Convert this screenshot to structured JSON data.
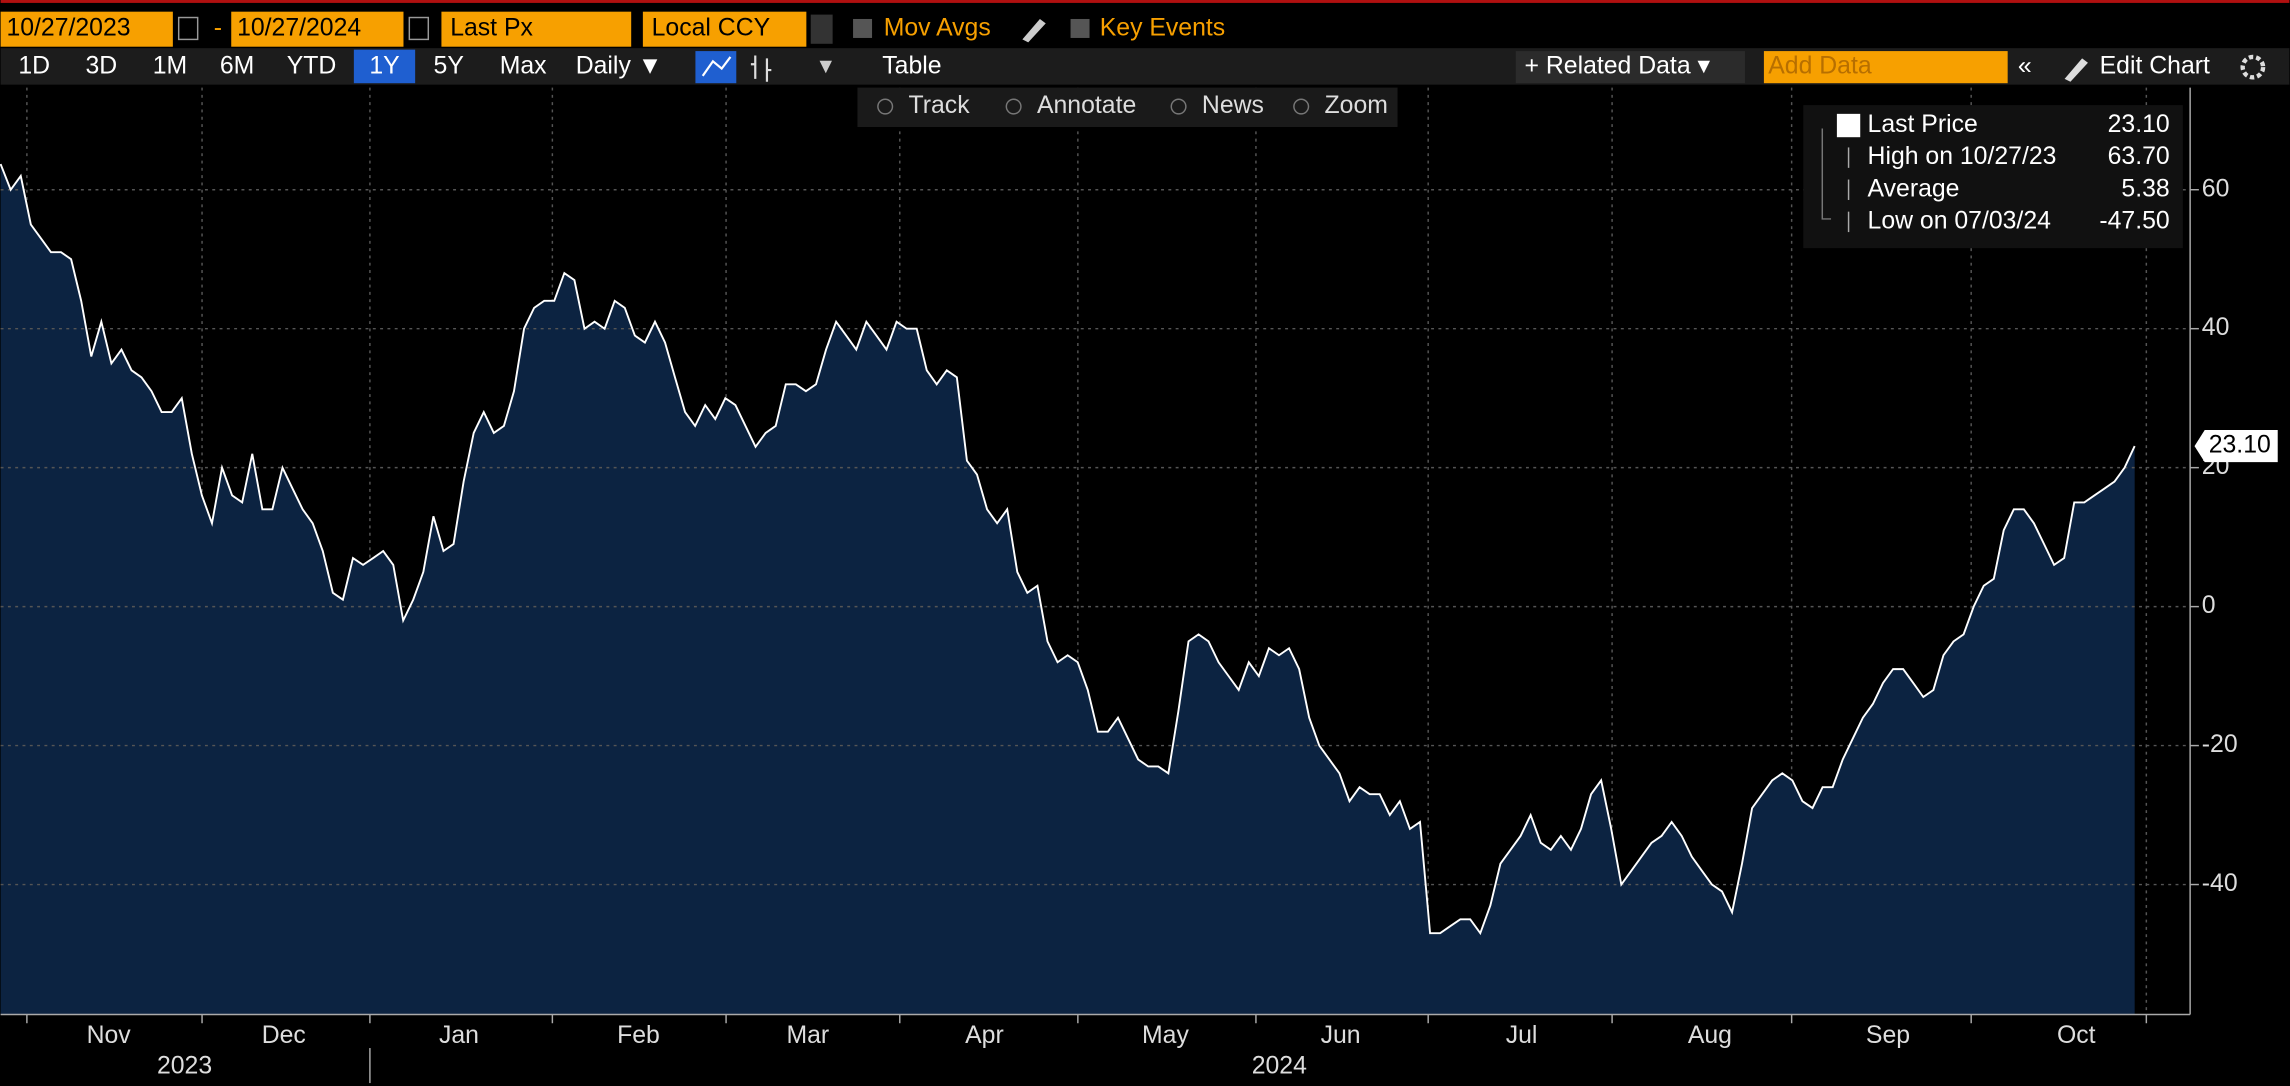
{
  "toolbar": {
    "start_date": "10/27/2023",
    "end_date": "10/27/2024",
    "field": "Last Px",
    "currency": "Local CCY",
    "mov_avgs": "Mov Avgs",
    "key_events": "Key Events",
    "ranges": [
      "1D",
      "3D",
      "1M",
      "6M",
      "YTD",
      "1Y",
      "5Y",
      "Max"
    ],
    "frequency": "Daily ▼",
    "table": "Table",
    "related_data": "+ Related Data ▾",
    "add_data": "Add Data",
    "edit_chart": "Edit Chart"
  },
  "tools": [
    "Track",
    "Annotate",
    "News",
    "Zoom"
  ],
  "chart_data": {
    "type": "line",
    "x_labels": [
      "Nov",
      "Dec",
      "Jan",
      "Feb",
      "Mar",
      "Apr",
      "May",
      "Jun",
      "Jul",
      "Aug",
      "Sep",
      "Oct"
    ],
    "years": [
      "2023",
      "2024"
    ],
    "series": [
      {
        "name": "Last Price",
        "color": "#ffffff",
        "values": [
          63.7,
          60,
          62,
          55,
          53,
          51,
          51,
          50,
          44,
          36,
          41,
          35,
          37,
          34,
          33,
          31,
          28,
          28,
          30,
          22,
          16,
          12,
          20,
          16,
          15,
          22,
          14,
          14,
          20,
          17,
          14,
          12,
          8,
          2,
          1,
          7,
          6,
          7,
          8,
          6,
          -2,
          1,
          5,
          13,
          8,
          9,
          18,
          25,
          28,
          25,
          26,
          31,
          40,
          43,
          44,
          44,
          48,
          47,
          40,
          41,
          40,
          44,
          43,
          39,
          38,
          41,
          38,
          33,
          28,
          26,
          29,
          27,
          30,
          29,
          26,
          23,
          25,
          26,
          32,
          32,
          31,
          32,
          37,
          41,
          39,
          37,
          41,
          39,
          37,
          41,
          40,
          40,
          34,
          32,
          34,
          33,
          21,
          19,
          14,
          12,
          14,
          5,
          2,
          3,
          -5,
          -8,
          -7,
          -8,
          -12,
          -18,
          -18,
          -16,
          -19,
          -22,
          -23,
          -23,
          -24,
          -15,
          -5,
          -4,
          -5,
          -8,
          -10,
          -12,
          -8,
          -10,
          -6,
          -7,
          -6,
          -9,
          -16,
          -20,
          -22,
          -24,
          -28,
          -26,
          -27,
          -27,
          -30,
          -28,
          -32,
          -31,
          -47,
          -47,
          -46,
          -45,
          -45,
          -47,
          -43,
          -37,
          -35,
          -33,
          -30,
          -34,
          -35,
          -33,
          -35,
          -32,
          -27,
          -25,
          -32,
          -40,
          -38,
          -36,
          -34,
          -33,
          -31,
          -33,
          -36,
          -38,
          -40,
          -41,
          -44,
          -37,
          -29,
          -27,
          -25,
          -24,
          -25,
          -28,
          -29,
          -26,
          -26,
          -22,
          -19,
          -16,
          -14,
          -11,
          -9,
          -9,
          -11,
          -13,
          -12,
          -7,
          -5,
          -4,
          0,
          3,
          4,
          11,
          14,
          14,
          12,
          9,
          6,
          7,
          15,
          15,
          16,
          17,
          18,
          20,
          23.1
        ]
      }
    ],
    "ylim": [
      -58.7,
      74.7
    ],
    "yticks": [
      60,
      40,
      20,
      0,
      -20,
      -40
    ],
    "grid": true,
    "legend": [
      {
        "label": "Last Price",
        "value": "23.10"
      },
      {
        "label": "High on 10/27/23",
        "value": "63.70"
      },
      {
        "label": "Average",
        "value": "5.38"
      },
      {
        "label": "Low on 07/03/24",
        "value": "-47.50"
      }
    ]
  }
}
